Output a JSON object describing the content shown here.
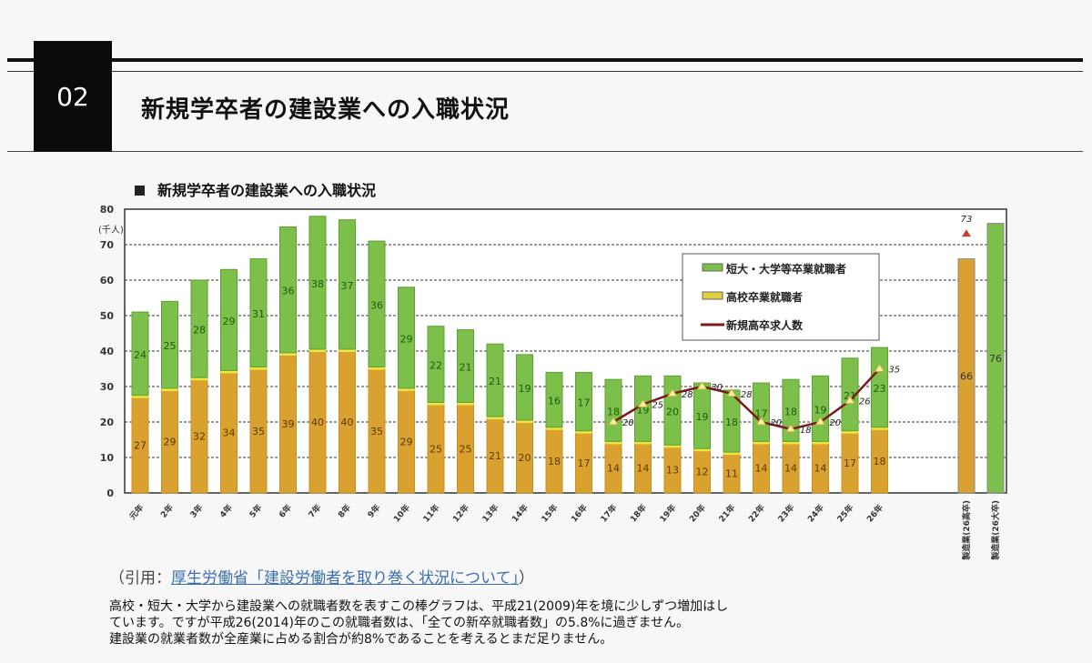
{
  "header": {
    "number": "02",
    "title": "新規学卒者の建設業への入職状況"
  },
  "chart_data": {
    "type": "bar",
    "title": "新規学卒者の建設業への入職状況",
    "ylabel": "(千人)",
    "ylim": [
      0,
      80
    ],
    "yticks": [
      0,
      10,
      20,
      30,
      40,
      50,
      60,
      70,
      80
    ],
    "grid": true,
    "legend_position": "top-right",
    "categories": [
      "元年",
      "2年",
      "3年",
      "4年",
      "5年",
      "6年",
      "7年",
      "8年",
      "9年",
      "10年",
      "11年",
      "12年",
      "13年",
      "14年",
      "15年",
      "16年",
      "17年",
      "18年",
      "19年",
      "20年",
      "21年",
      "22年",
      "23年",
      "24年",
      "25年",
      "26年"
    ],
    "series": [
      {
        "name": "高校卒業就職者",
        "color": "#d9a230",
        "values": [
          27,
          29,
          32,
          34,
          35,
          39,
          40,
          40,
          35,
          29,
          25,
          25,
          21,
          20,
          18,
          17,
          14,
          14,
          13,
          12,
          11,
          14,
          14,
          14,
          17,
          18
        ]
      },
      {
        "name": "短大・大学等卒業就職者",
        "color": "#7cbf4a",
        "values": [
          24,
          25,
          28,
          29,
          31,
          36,
          38,
          37,
          36,
          29,
          22,
          21,
          21,
          19,
          16,
          17,
          18,
          19,
          20,
          19,
          18,
          17,
          18,
          19,
          21,
          23
        ]
      },
      {
        "name": "新規高卒求人数",
        "type": "line",
        "color": "#7a1a1a",
        "values": [
          null,
          null,
          null,
          null,
          null,
          null,
          null,
          null,
          null,
          null,
          null,
          null,
          null,
          null,
          null,
          null,
          20,
          25,
          28,
          30,
          28,
          20,
          18,
          20,
          26,
          35
        ]
      }
    ],
    "comparison": [
      {
        "label": "製造業(26高卒)",
        "value": 66,
        "color": "#d9a230",
        "marker_value": 73
      },
      {
        "label": "製造業(26大卒)",
        "value": 76,
        "color": "#7cbf4a"
      }
    ]
  },
  "citation": {
    "prefix": "（引用：",
    "source": "厚生労働省「建設労働者を取り巻く状況について」",
    "suffix": "）"
  },
  "description": [
    "高校・短大・大学から建設業への就職者数を表すこの棒グラフは、平成21(2009)年を境に少しずつ増加はし",
    "ています。ですが平成26(2014)年のこの就職者数は、「全ての新卒就職者数」の5.8%に過ぎません。",
    "建設業の就業者数が全産業に占める割合が約8%であることを考えるとまだ足りません。"
  ]
}
